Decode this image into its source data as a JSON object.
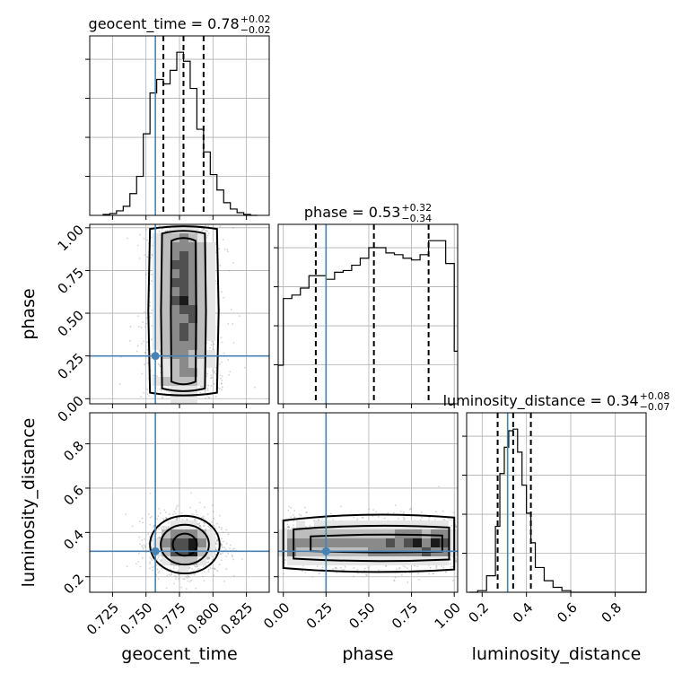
{
  "chart_data": {
    "type": "corner",
    "parameters": [
      "geocent_time",
      "phase",
      "luminosity_distance"
    ],
    "truths": {
      "geocent_time": 0.757,
      "phase": 0.25,
      "luminosity_distance": 0.315
    },
    "ranges": {
      "geocent_time": [
        0.708,
        0.842
      ],
      "phase": [
        -0.03,
        1.02
      ],
      "luminosity_distance": [
        0.13,
        0.94
      ]
    },
    "ticks": {
      "geocent_time": {
        "values": [
          0.725,
          0.75,
          0.775,
          0.8,
          0.825
        ],
        "labels": [
          "0.725",
          "0.750",
          "0.775",
          "0.800",
          "0.825"
        ]
      },
      "phase": {
        "values": [
          0.0,
          0.25,
          0.5,
          0.75,
          1.0
        ],
        "labels": [
          "0.00",
          "0.25",
          "0.50",
          "0.75",
          "1.00"
        ]
      },
      "luminosity_distance": {
        "values": [
          0.2,
          0.4,
          0.6,
          0.8
        ],
        "labels": [
          "0.2",
          "0.4",
          "0.6",
          "0.8"
        ]
      }
    },
    "titles": {
      "geocent_time": {
        "text": "geocent_time = 0.78",
        "sup": "+0.02",
        "sub": "−0.02"
      },
      "phase": {
        "text": "phase = 0.53",
        "sup": "+0.32",
        "sub": "−0.34"
      },
      "luminosity_distance": {
        "text": "luminosity_distance = 0.34",
        "sup": "+0.08",
        "sub": "−0.07"
      }
    },
    "quantiles": {
      "geocent_time": [
        0.763,
        0.778,
        0.793
      ],
      "phase": [
        0.19,
        0.53,
        0.85
      ],
      "luminosity_distance": [
        0.27,
        0.34,
        0.42
      ]
    },
    "histograms": {
      "geocent_time": {
        "edges": [
          0.718,
          0.723,
          0.728,
          0.733,
          0.738,
          0.743,
          0.748,
          0.753,
          0.758,
          0.763,
          0.768,
          0.773,
          0.778,
          0.783,
          0.788,
          0.793,
          0.798,
          0.803,
          0.808,
          0.813,
          0.818,
          0.823,
          0.828,
          0.833
        ],
        "counts": [
          1,
          2,
          5,
          10,
          24,
          43,
          90,
          135,
          150,
          145,
          160,
          180,
          170,
          140,
          95,
          70,
          45,
          28,
          14,
          7,
          3,
          1,
          0
        ]
      },
      "phase": {
        "edges": [
          -0.03,
          0.0,
          0.05,
          0.1,
          0.15,
          0.2,
          0.25,
          0.3,
          0.35,
          0.4,
          0.45,
          0.5,
          0.55,
          0.6,
          0.65,
          0.7,
          0.75,
          0.8,
          0.85,
          0.9,
          0.95,
          1.0,
          1.02
        ],
        "counts": [
          22,
          60,
          62,
          66,
          73,
          73,
          71,
          75,
          76,
          79,
          83,
          89,
          89,
          86,
          85,
          83,
          82,
          85,
          93,
          93,
          80,
          30
        ]
      },
      "luminosity_distance": {
        "edges": [
          0.14,
          0.18,
          0.22,
          0.26,
          0.28,
          0.3,
          0.32,
          0.34,
          0.36,
          0.38,
          0.4,
          0.42,
          0.44,
          0.48,
          0.52,
          0.56,
          0.6,
          0.64,
          0.68,
          0.72,
          0.8,
          0.88,
          0.94
        ],
        "counts": [
          0,
          1,
          10,
          40,
          72,
          88,
          98,
          99,
          85,
          65,
          48,
          30,
          15,
          7,
          3,
          1,
          0,
          0,
          0,
          0,
          0,
          0
        ]
      }
    }
  }
}
